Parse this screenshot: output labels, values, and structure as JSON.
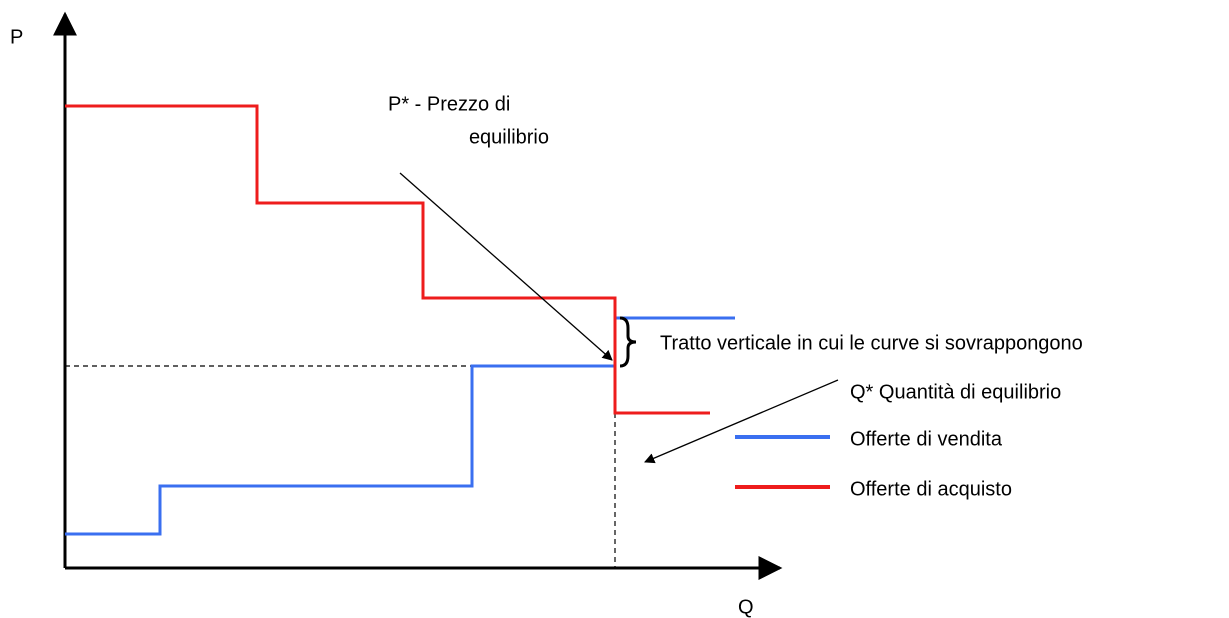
{
  "axes": {
    "y_label": "P",
    "x_label": "Q"
  },
  "annotations": {
    "equilibrium_price": [
      "P* - Prezzo di",
      "equilibrio"
    ],
    "overlap": "Tratto verticale in cui le curve si sovrappongono",
    "equilibrium_quantity": "Q* Quantità di equilibrio"
  },
  "legend": [
    {
      "label": "Offerte di vendita",
      "color": "#3a6ff0"
    },
    {
      "label": "Offerte di acquisto",
      "color": "#ee1c1c"
    }
  ]
}
